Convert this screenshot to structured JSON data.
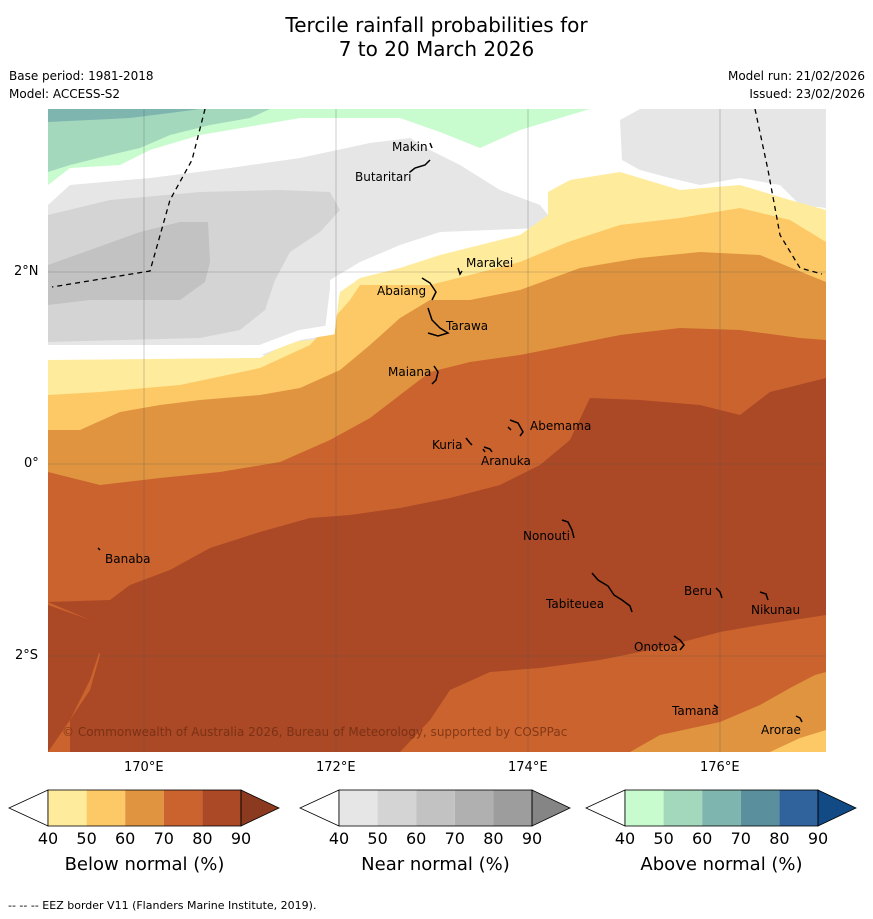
{
  "title": {
    "line1": "Tercile rainfall probabilities for",
    "line2": "7 to 20 March 2026"
  },
  "info": {
    "base_period": "Base period: 1981-2018",
    "model": "Model: ACCESS-S2",
    "model_run": "Model run: 21/02/2026",
    "issued": "Issued: 23/02/2026"
  },
  "axes": {
    "lon_labels": [
      "170°E",
      "172°E",
      "174°E",
      "176°E"
    ],
    "lat_labels": [
      "2°N",
      "0°",
      "2°S"
    ]
  },
  "places": [
    {
      "name": "Makin"
    },
    {
      "name": "Butaritari"
    },
    {
      "name": "Marakei"
    },
    {
      "name": "Abaiang"
    },
    {
      "name": "Tarawa"
    },
    {
      "name": "Maiana"
    },
    {
      "name": "Abemama"
    },
    {
      "name": "Kuria"
    },
    {
      "name": "Aranuka"
    },
    {
      "name": "Banaba"
    },
    {
      "name": "Nonouti"
    },
    {
      "name": "Beru"
    },
    {
      "name": "Nikunau"
    },
    {
      "name": "Tabiteuea"
    },
    {
      "name": "Onotoa"
    },
    {
      "name": "Tamana"
    },
    {
      "name": "Arorae"
    }
  ],
  "copyright": "© Commonwealth of Australia 2026, Bureau of Meteorology, supported by COSPPac",
  "colorbars": [
    {
      "label": "Below normal (%)",
      "ticks": [
        "40",
        "50",
        "60",
        "70",
        "80",
        "90"
      ],
      "colors": [
        "#ffffff",
        "#ffeb9c",
        "#fdc966",
        "#e0943f",
        "#cb632e",
        "#ab4825",
        "#8b3a1f"
      ]
    },
    {
      "label": "Near normal (%)",
      "ticks": [
        "40",
        "50",
        "60",
        "70",
        "80",
        "90"
      ],
      "colors": [
        "#ffffff",
        "#e6e6e6",
        "#d4d4d4",
        "#c2c2c2",
        "#b0b0b0",
        "#9d9d9d",
        "#858585"
      ]
    },
    {
      "label": "Above normal (%)",
      "ticks": [
        "40",
        "50",
        "60",
        "70",
        "80",
        "90"
      ],
      "colors": [
        "#ffffff",
        "#c8fbcd",
        "#a3d8bc",
        "#7eb5ae",
        "#5a909e",
        "#30629b",
        "#124a85"
      ]
    }
  ],
  "footer": "--  --  -- EEZ border V11 (Flanders Marine Institute, 2019)."
}
